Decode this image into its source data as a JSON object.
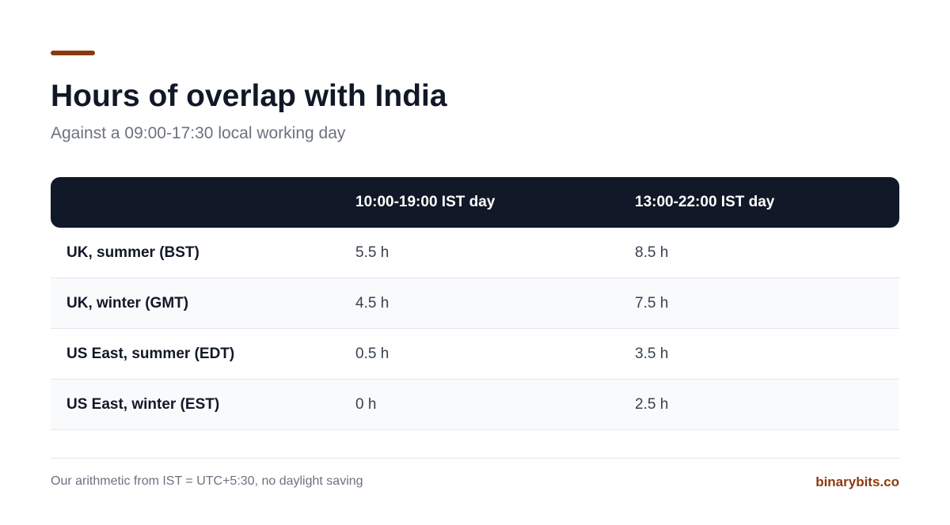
{
  "header": {
    "title": "Hours of overlap with India",
    "subtitle": "Against a 09:00-17:30 local working day"
  },
  "table": {
    "columns": [
      "10:00-19:00 IST day",
      "13:00-22:00 IST day"
    ],
    "rows": [
      [
        "UK, summer (BST)",
        "5.5 h",
        "8.5 h"
      ],
      [
        "UK, winter (GMT)",
        "4.5 h",
        "7.5 h"
      ],
      [
        "US East, summer (EDT)",
        "0.5 h",
        "3.5 h"
      ],
      [
        "US East, winter (EST)",
        "0 h",
        "2.5 h"
      ]
    ]
  },
  "footer": {
    "note": "Our arithmetic from IST = UTC+5:30, no daylight saving",
    "brand": "binarybits.co"
  }
}
